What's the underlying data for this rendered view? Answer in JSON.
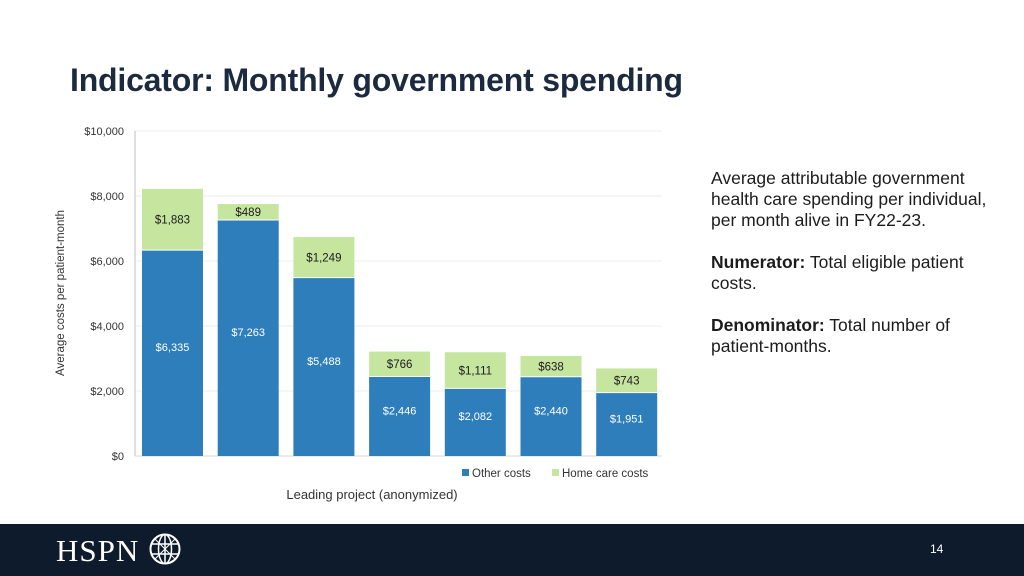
{
  "slide": {
    "title": "Indicator: Monthly government spending",
    "page_number": "14"
  },
  "side_panel": {
    "description": "Average attributable government health care spending per individual, per month alive in FY22-23.",
    "numerator_label": "Numerator:",
    "numerator_text": " Total eligible patient costs.",
    "denominator_label": "Denominator:",
    "denominator_text": " Total number of patient-months."
  },
  "footer": {
    "logo_text": "HSPN",
    "logo_icon": "globe-icon"
  },
  "colors": {
    "other_costs": "#2e7ebc",
    "home_care_costs": "#c6e59f",
    "title": "#1c2a3f",
    "footer_bg": "#0e1b2c"
  },
  "chart_data": {
    "type": "bar",
    "stacked": true,
    "title": "",
    "xlabel": "Leading project (anonymized)",
    "ylabel": "Average costs per patient-month",
    "ylim": [
      0,
      10000
    ],
    "yticks": [
      0,
      2000,
      4000,
      6000,
      8000,
      10000
    ],
    "ytick_labels": [
      "$0",
      "$2,000",
      "$4,000",
      "$6,000",
      "$8,000",
      "$10,000"
    ],
    "gridlines": true,
    "legend_position": "bottom-right",
    "categories": [
      "",
      "",
      "",
      "",
      "",
      "",
      ""
    ],
    "series": [
      {
        "name": "Other costs",
        "values": [
          6335,
          7263,
          5488,
          2446,
          2082,
          2440,
          1951
        ],
        "labels": [
          "$6,335",
          "$7,263",
          "$5,488",
          "$2,446",
          "$2,082",
          "$2,440",
          "$1,951"
        ]
      },
      {
        "name": "Home care costs",
        "values": [
          1883,
          489,
          1249,
          766,
          1111,
          638,
          743
        ],
        "labels": [
          "$1,883",
          "$489",
          "$1,249",
          "$766",
          "$1,111",
          "$638",
          "$743"
        ]
      }
    ]
  }
}
